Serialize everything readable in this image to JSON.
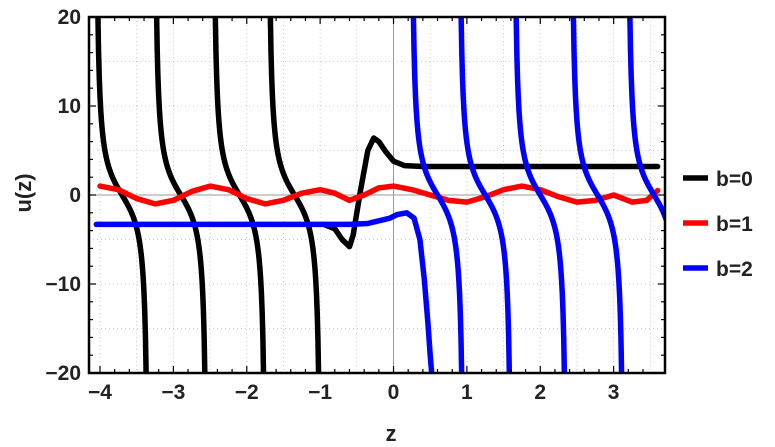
{
  "chart_data": {
    "type": "line",
    "xlabel": "z",
    "ylabel": "u(z)",
    "xlim": [
      -4.15,
      3.7
    ],
    "ylim": [
      -20,
      20
    ],
    "x_ticks": [
      -4,
      -3,
      -2,
      -1,
      0,
      1,
      2,
      3
    ],
    "y_ticks": [
      -20,
      -10,
      0,
      10,
      20
    ],
    "x_tick_labels": [
      "−4",
      "−3",
      "−2",
      "−1",
      "0",
      "1",
      "2",
      "3"
    ],
    "y_tick_labels": [
      "−20",
      "−10",
      "0",
      "10",
      "20"
    ],
    "grid": true,
    "legend_position": "right",
    "series": [
      {
        "name": "b=0",
        "color": "#000000",
        "poles": [
          -3.7,
          -2.9,
          -2.1,
          -1.35
        ],
        "points": [
          [
            -0.95,
            -3.3
          ],
          [
            -0.8,
            -3.8
          ],
          [
            -0.7,
            -5.0
          ],
          [
            -0.6,
            -5.8
          ],
          [
            -0.55,
            -4.5
          ],
          [
            -0.45,
            0.5
          ],
          [
            -0.35,
            5.0
          ],
          [
            -0.27,
            6.4
          ],
          [
            -0.2,
            6.0
          ],
          [
            -0.1,
            4.8
          ],
          [
            0.0,
            3.8
          ],
          [
            0.15,
            3.3
          ],
          [
            0.4,
            3.2
          ],
          [
            3.6,
            3.2
          ]
        ]
      },
      {
        "name": "b=1",
        "color": "#ff0000",
        "points": [
          [
            -4.0,
            1.0
          ],
          [
            -3.75,
            0.6
          ],
          [
            -3.5,
            -0.4
          ],
          [
            -3.25,
            -1.0
          ],
          [
            -3.0,
            -0.6
          ],
          [
            -2.75,
            0.4
          ],
          [
            -2.5,
            1.0
          ],
          [
            -2.25,
            0.6
          ],
          [
            -2.0,
            -0.4
          ],
          [
            -1.75,
            -1.0
          ],
          [
            -1.5,
            -0.6
          ],
          [
            -1.25,
            0.2
          ],
          [
            -1.0,
            0.6
          ],
          [
            -0.8,
            0.2
          ],
          [
            -0.6,
            -0.6
          ],
          [
            -0.4,
            0.0
          ],
          [
            -0.2,
            0.8
          ],
          [
            0.0,
            1.0
          ],
          [
            0.25,
            0.6
          ],
          [
            0.5,
            0.0
          ],
          [
            0.75,
            -0.6
          ],
          [
            1.0,
            -0.8
          ],
          [
            1.25,
            -0.2
          ],
          [
            1.5,
            0.6
          ],
          [
            1.75,
            1.0
          ],
          [
            2.0,
            0.6
          ],
          [
            2.25,
            -0.2
          ],
          [
            2.5,
            -0.8
          ],
          [
            2.75,
            -0.6
          ],
          [
            3.0,
            0.0
          ],
          [
            3.25,
            -0.8
          ],
          [
            3.45,
            -0.6
          ],
          [
            3.6,
            0.5
          ]
        ]
      },
      {
        "name": "b=2",
        "color": "#0000ff",
        "poles": [
          0.6,
          1.25,
          2.0,
          2.78,
          3.55
        ],
        "points": [
          [
            -4.05,
            -3.3
          ],
          [
            -0.6,
            -3.3
          ],
          [
            -0.35,
            -3.2
          ],
          [
            -0.2,
            -2.9
          ],
          [
            -0.05,
            -2.6
          ],
          [
            0.05,
            -2.2
          ],
          [
            0.18,
            -2.0
          ],
          [
            0.28,
            -2.6
          ],
          [
            0.36,
            -5.0
          ],
          [
            0.42,
            -9.5
          ],
          [
            0.47,
            -14.5
          ],
          [
            0.5,
            -18.0
          ],
          [
            0.52,
            -20.0
          ]
        ]
      }
    ]
  }
}
